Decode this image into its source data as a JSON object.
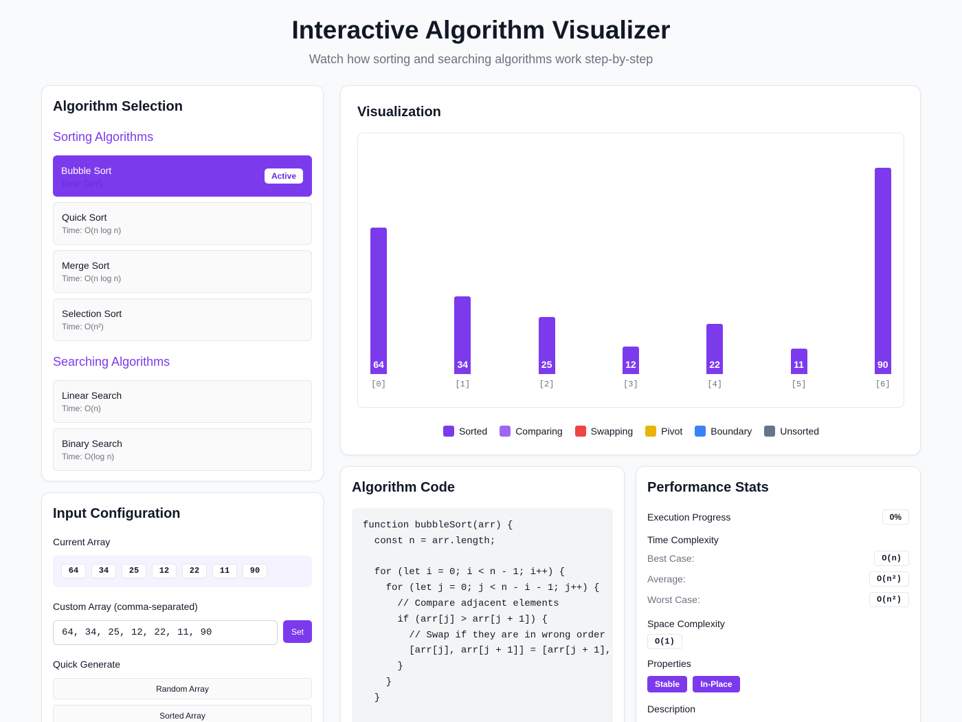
{
  "header": {
    "title": "Interactive Algorithm Visualizer",
    "subtitle": "Watch how sorting and searching algorithms work step-by-step"
  },
  "algorithm_selection": {
    "title": "Algorithm Selection",
    "sorting_title": "Sorting Algorithms",
    "searching_title": "Searching Algorithms",
    "active_badge": "Active",
    "sorting": [
      {
        "name": "Bubble Sort",
        "time": "Time: O(n²)",
        "active": true
      },
      {
        "name": "Quick Sort",
        "time": "Time: O(n log n)",
        "active": false
      },
      {
        "name": "Merge Sort",
        "time": "Time: O(n log n)",
        "active": false
      },
      {
        "name": "Selection Sort",
        "time": "Time: O(n²)",
        "active": false
      }
    ],
    "searching": [
      {
        "name": "Linear Search",
        "time": "Time: O(n)"
      },
      {
        "name": "Binary Search",
        "time": "Time: O(log n)"
      }
    ]
  },
  "input_config": {
    "title": "Input Configuration",
    "current_array_label": "Current Array",
    "current_array": [
      "64",
      "34",
      "25",
      "12",
      "22",
      "11",
      "90"
    ],
    "custom_label": "Custom Array (comma-separated)",
    "custom_value": "64, 34, 25, 12, 22, 11, 90",
    "set_label": "Set",
    "quick_generate_label": "Quick Generate",
    "random_label": "Random Array",
    "sorted_label": "Sorted Array"
  },
  "visualization": {
    "title": "Visualization",
    "legend": [
      {
        "label": "Sorted",
        "color": "#7c3aed"
      },
      {
        "label": "Comparing",
        "color": "#9f67f0"
      },
      {
        "label": "Swapping",
        "color": "#ef4444"
      },
      {
        "label": "Pivot",
        "color": "#eab308"
      },
      {
        "label": "Boundary",
        "color": "#3b82f6"
      },
      {
        "label": "Unsorted",
        "color": "#64748b"
      }
    ],
    "bar_color": "#7c3aed"
  },
  "chart_data": {
    "type": "bar",
    "categories": [
      "[0]",
      "[1]",
      "[2]",
      "[3]",
      "[4]",
      "[5]",
      "[6]"
    ],
    "values": [
      64,
      34,
      25,
      12,
      22,
      11,
      90
    ]
  },
  "code": {
    "title": "Algorithm Code",
    "lines": [
      "function bubbleSort(arr) {",
      "  const n = arr.length;",
      "",
      "  for (let i = 0; i < n - 1; i++) {",
      "    for (let j = 0; j < n - i - 1; j++) {",
      "      // Compare adjacent elements",
      "      if (arr[j] > arr[j + 1]) {",
      "        // Swap if they are in wrong order",
      "        [arr[j], arr[j + 1]] = [arr[j + 1],",
      "      }",
      "    }",
      "  }"
    ]
  },
  "performance": {
    "title": "Performance Stats",
    "progress_label": "Execution Progress",
    "progress_value": "0%",
    "time_label": "Time Complexity",
    "best_label": "Best Case:",
    "best_value": "O(n)",
    "avg_label": "Average:",
    "avg_value": "O(n²)",
    "worst_label": "Worst Case:",
    "worst_value": "O(n²)",
    "space_label": "Space Complexity",
    "space_value": "O(1)",
    "properties_label": "Properties",
    "properties": [
      "Stable",
      "In-Place"
    ],
    "description_label": "Description"
  }
}
